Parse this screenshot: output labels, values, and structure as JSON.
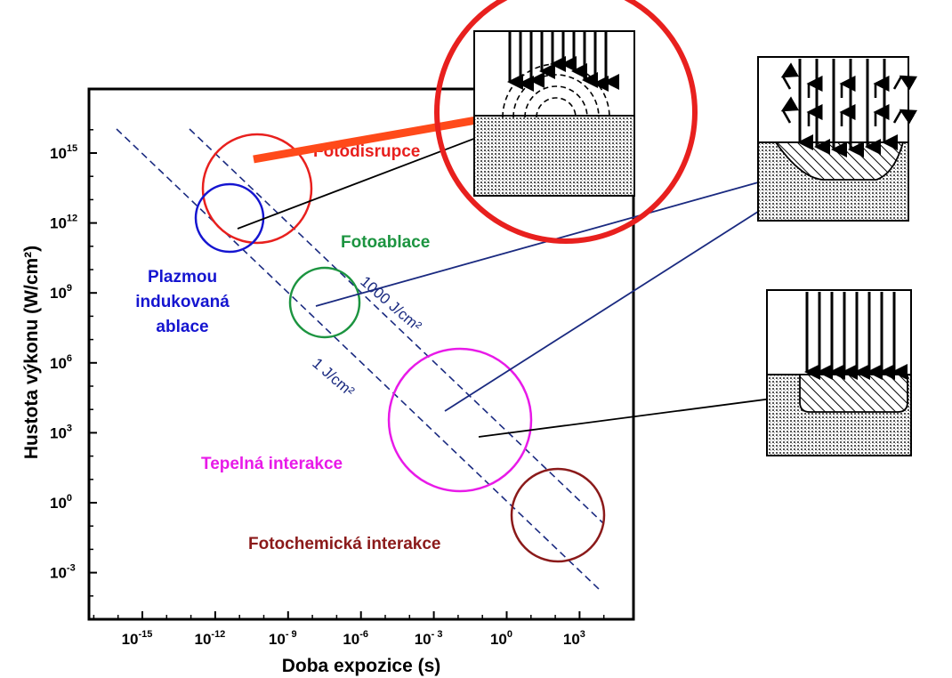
{
  "chart_data": {
    "type": "scatter",
    "xlabel": "Doba expozice  (s)",
    "ylabel": "Hustota výkonu  (W/cm²)",
    "x_scale": "log",
    "y_scale": "log",
    "xlim_exp": [
      -18,
      5
    ],
    "ylim_exp": [
      -5,
      17
    ],
    "x_ticks": [
      {
        "base": "10",
        "exp": "-15"
      },
      {
        "base": "10",
        "exp": "-12"
      },
      {
        "base": "10",
        "exp": "- 9"
      },
      {
        "base": "10",
        "exp": "-6"
      },
      {
        "base": "10",
        "exp": "- 3"
      },
      {
        "base": "10",
        "exp": "0"
      },
      {
        "base": "10",
        "exp": "3"
      }
    ],
    "y_ticks": [
      {
        "base": "10",
        "exp": "15"
      },
      {
        "base": "10",
        "exp": "12"
      },
      {
        "base": "10",
        "exp": "9"
      },
      {
        "base": "10",
        "exp": "6"
      },
      {
        "base": "10",
        "exp": "3"
      },
      {
        "base": "10",
        "exp": "0"
      },
      {
        "base": "10",
        "exp": "-3"
      }
    ],
    "regions": [
      {
        "label": "Fotodisrupce",
        "color": "#e8201e",
        "log_t": -11.3,
        "log_i": 13.6
      },
      {
        "label": "Plazmou indukovaná ablace",
        "color": "#1515d0",
        "log_t": -12.4,
        "log_i": 12.2
      },
      {
        "label": "Fotoablace",
        "color": "#1c9440",
        "log_t": -8.1,
        "log_i": 8.0
      },
      {
        "label": "Tepelná interakce",
        "color": "#e81ae8",
        "log_t": -2.3,
        "log_i": 3.7
      },
      {
        "label": "Fotochemická interakce",
        "color": "#8b1a1a",
        "log_t": 1.8,
        "log_i": -0.5
      }
    ],
    "fluence_lines": [
      {
        "label": "1000 J/cm²"
      },
      {
        "label": "1 J/cm²"
      }
    ],
    "grid": false
  },
  "region_labels": {
    "fotodisrupce": "Fotodisrupce",
    "fotoablace": "Fotoablace",
    "plazmou_1": "Plazmou",
    "plazmou_2": "indukovaná",
    "plazmou_3": "ablace",
    "tepelna": "Tepelná interakce",
    "fotochemicka": "Fotochemická interakce"
  },
  "colors": {
    "fotodisrupce": "#e8201e",
    "plazmou": "#1515d0",
    "fotoablace": "#1c9440",
    "tepelna": "#e81ae8",
    "fotochemicka": "#8b1a1a",
    "fluence": "#1a2a80",
    "connector": "#1a2a80",
    "highlight_ring": "#e8201e"
  }
}
